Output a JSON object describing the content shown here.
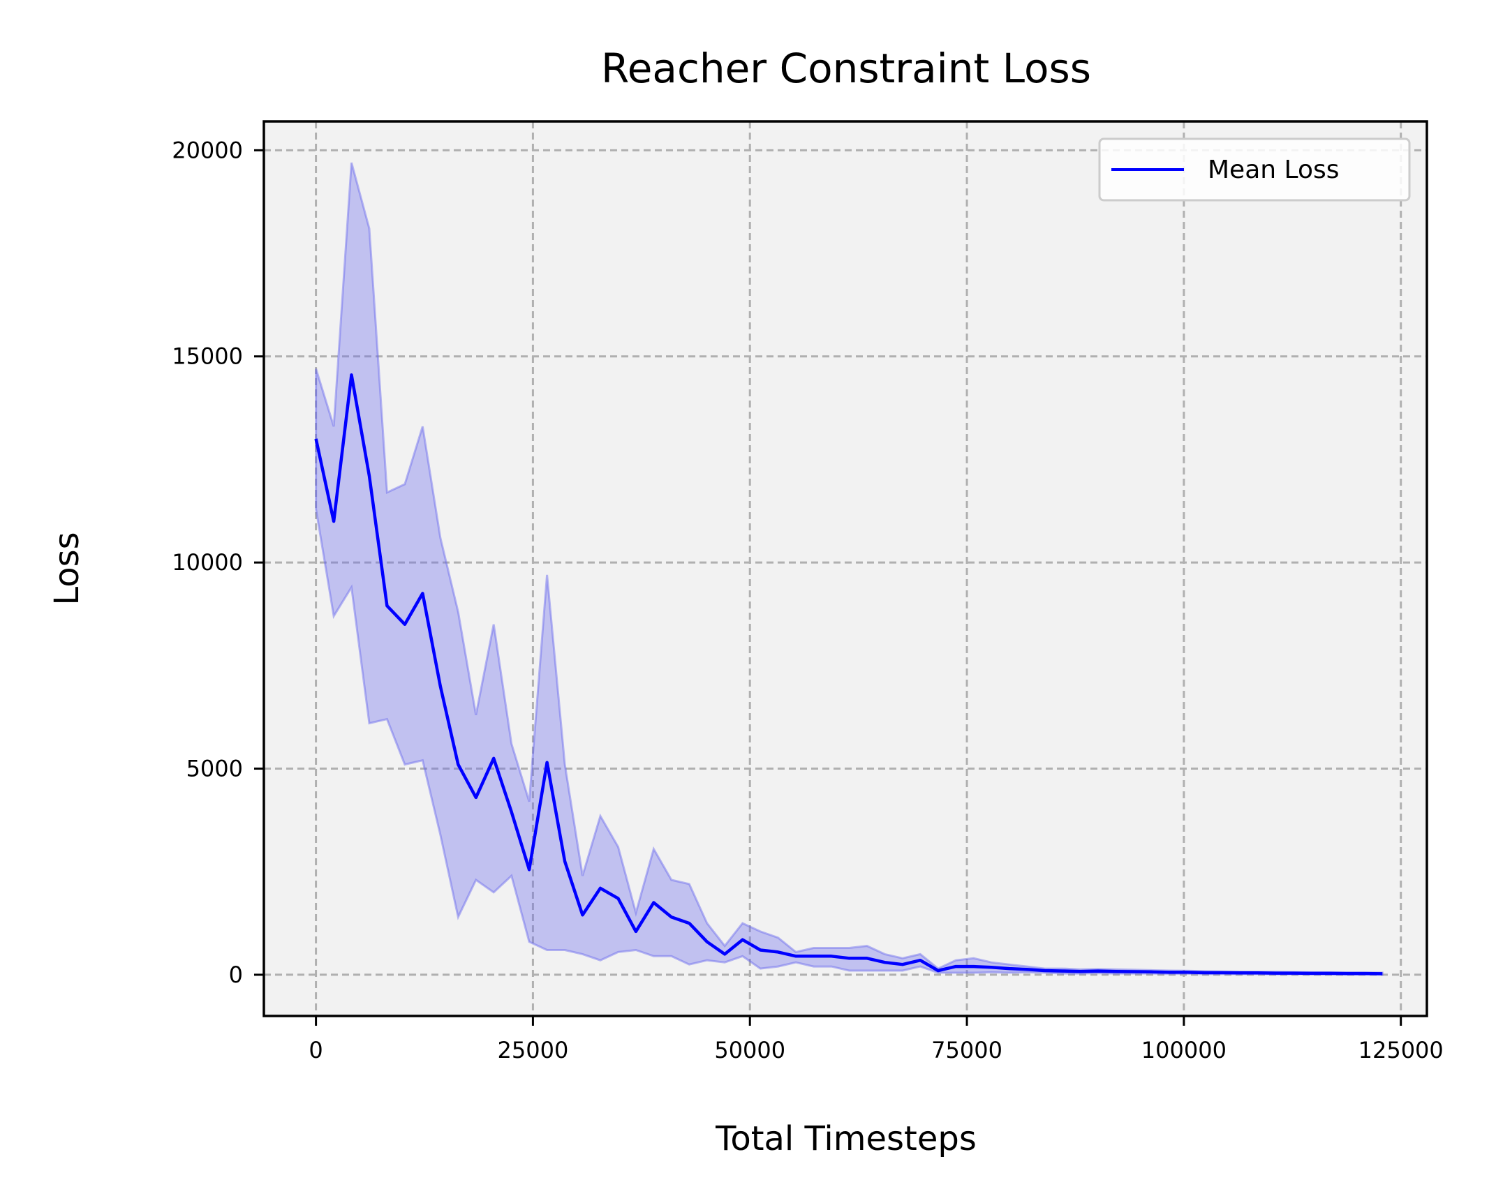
{
  "chart_data": {
    "type": "line",
    "title": "Reacher Constraint Loss",
    "xlabel": "Total Timesteps",
    "ylabel": "Loss",
    "xlim": [
      -6000,
      128000
    ],
    "ylim": [
      -1000,
      20700
    ],
    "xticks": [
      0,
      25000,
      50000,
      75000,
      100000,
      125000
    ],
    "yticks": [
      0,
      5000,
      10000,
      15000,
      20000
    ],
    "xtick_labels": [
      "0",
      "25000",
      "50000",
      "75000",
      "100000",
      "125000"
    ],
    "ytick_labels": [
      "0",
      "5000",
      "10000",
      "15000",
      "20000"
    ],
    "grid": true,
    "legend_position": "top-right",
    "series": [
      {
        "name": "Mean Loss",
        "color": "#0000ff",
        "band_color": "#6666ee",
        "x": [
          0,
          2048,
          4096,
          6144,
          8192,
          10240,
          12288,
          14336,
          16384,
          18432,
          20480,
          22528,
          24576,
          26624,
          28672,
          30720,
          32768,
          34816,
          36864,
          38912,
          40960,
          43008,
          45056,
          47104,
          49152,
          51200,
          53248,
          55296,
          57344,
          59392,
          61440,
          63488,
          65536,
          67584,
          69632,
          71680,
          73728,
          75776,
          77824,
          79872,
          81920,
          83968,
          86016,
          88064,
          90112,
          92160,
          94208,
          96256,
          98304,
          100352,
          102400,
          104448,
          106496,
          108544,
          110592,
          112640,
          114688,
          116736,
          118784,
          120832,
          122880
        ],
        "mean": [
          13000,
          11000,
          14550,
          12100,
          8950,
          8500,
          9250,
          7000,
          5100,
          4300,
          5250,
          3950,
          2550,
          5150,
          2750,
          1450,
          2100,
          1850,
          1050,
          1750,
          1400,
          1250,
          800,
          500,
          850,
          600,
          550,
          450,
          450,
          450,
          400,
          400,
          300,
          250,
          350,
          100,
          200,
          200,
          180,
          150,
          130,
          100,
          90,
          80,
          90,
          80,
          75,
          70,
          60,
          60,
          50,
          50,
          45,
          45,
          40,
          40,
          35,
          35,
          30,
          30,
          25
        ],
        "upper": [
          14700,
          13300,
          19700,
          18100,
          11700,
          11900,
          13300,
          10600,
          8800,
          6300,
          8500,
          5600,
          4200,
          9700,
          5100,
          2400,
          3850,
          3100,
          1500,
          3050,
          2300,
          2200,
          1250,
          700,
          1250,
          1050,
          900,
          550,
          650,
          650,
          650,
          700,
          500,
          400,
          500,
          150,
          350,
          400,
          300,
          250,
          200,
          150,
          150,
          130,
          140,
          130,
          120,
          110,
          100,
          95,
          85,
          80,
          75,
          72,
          70,
          65,
          60,
          58,
          55,
          52,
          50
        ],
        "lower": [
          11300,
          8700,
          9400,
          6100,
          6200,
          5100,
          5200,
          3400,
          1400,
          2300,
          2000,
          2400,
          800,
          600,
          600,
          500,
          350,
          550,
          600,
          450,
          450,
          250,
          350,
          300,
          450,
          150,
          200,
          300,
          200,
          200,
          100,
          100,
          100,
          100,
          200,
          50,
          50,
          50,
          60,
          50,
          60,
          50,
          30,
          30,
          40,
          30,
          30,
          30,
          20,
          25,
          15,
          20,
          15,
          18,
          10,
          15,
          10,
          12,
          5,
          8,
          0
        ]
      }
    ]
  }
}
